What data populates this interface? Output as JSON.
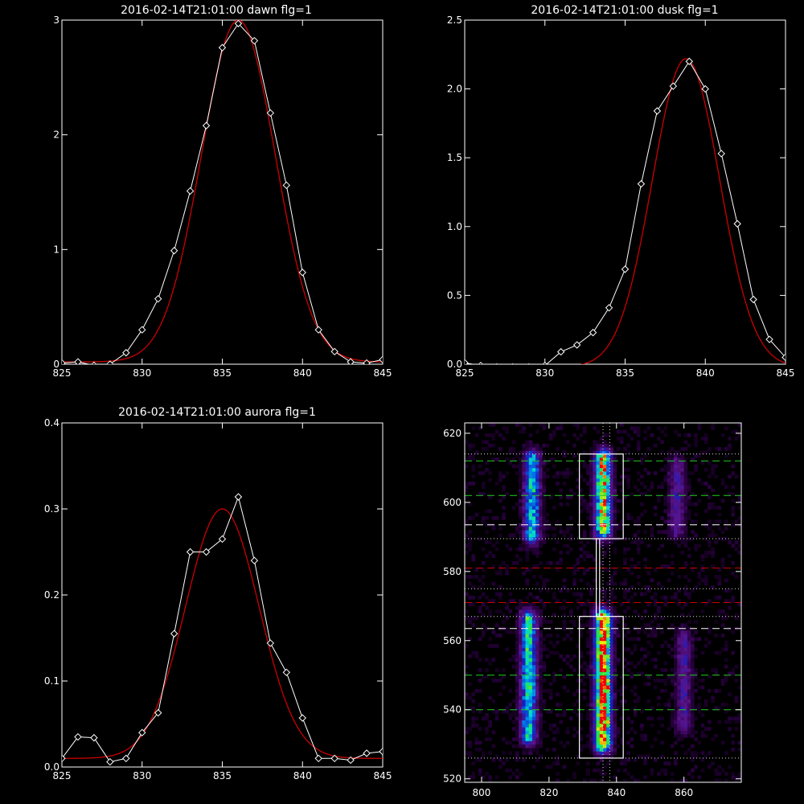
{
  "colors": {
    "background": "#000000",
    "axes": "#ffffff",
    "data": "#ffffff",
    "fit": "#cc0000",
    "green_dash": "#22cc22",
    "red_dash": "#cc0000",
    "white_dash": "#ffffff",
    "dotted": "#dddddd"
  },
  "chart_data": [
    {
      "type": "line",
      "title": "2016-02-14T21:01:00 dawn flg=1",
      "xlabel": "",
      "ylabel": "",
      "xlim": [
        825,
        845
      ],
      "ylim": [
        0,
        3
      ],
      "x_ticks": [
        825,
        830,
        835,
        840,
        845
      ],
      "x_tick_labels": [
        "825",
        "830",
        "835",
        "840",
        "845"
      ],
      "y_ticks": [
        0,
        1,
        2,
        3
      ],
      "y_tick_labels": [
        "0",
        "1",
        "2",
        "3"
      ],
      "series": [
        {
          "role": "data",
          "marker": "diamond",
          "color": "#ffffff",
          "x": [
            825,
            826,
            827,
            828,
            829,
            830,
            831,
            832,
            833,
            834,
            835,
            836,
            837,
            838,
            839,
            840,
            841,
            842,
            843,
            844,
            845
          ],
          "y": [
            0.01,
            0.02,
            -0.01,
            0.0,
            0.1,
            0.3,
            0.57,
            0.99,
            1.51,
            2.08,
            2.76,
            2.97,
            2.82,
            2.19,
            1.56,
            0.8,
            0.3,
            0.11,
            0.02,
            0.01,
            0.04
          ]
        },
        {
          "role": "fit",
          "curve": "gaussian",
          "color": "#cc0000",
          "amplitude": 2.98,
          "center": 836.0,
          "sigma": 2.3,
          "offset": 0.02
        }
      ]
    },
    {
      "type": "line",
      "title": "2016-02-14T21:01:00 dusk flg=1",
      "xlabel": "",
      "ylabel": "",
      "xlim": [
        825,
        845
      ],
      "ylim": [
        0,
        2.5
      ],
      "x_ticks": [
        825,
        830,
        835,
        840,
        845
      ],
      "x_tick_labels": [
        "825",
        "830",
        "835",
        "840",
        "845"
      ],
      "y_ticks": [
        0,
        0.5,
        1.0,
        1.5,
        2.0,
        2.5
      ],
      "y_tick_labels": [
        "0.0",
        "0.5",
        "1.0",
        "1.5",
        "2.0",
        "2.5"
      ],
      "series": [
        {
          "role": "data",
          "marker": "diamond",
          "color": "#ffffff",
          "x": [
            825,
            826,
            827,
            828,
            829,
            830,
            831,
            832,
            833,
            834,
            835,
            836,
            837,
            838,
            839,
            840,
            841,
            842,
            843,
            844,
            845
          ],
          "y": [
            0.01,
            -0.01,
            -0.02,
            -0.02,
            -0.02,
            -0.01,
            0.09,
            0.14,
            0.23,
            0.41,
            0.69,
            1.31,
            1.84,
            2.02,
            2.2,
            2.0,
            1.53,
            1.02,
            0.47,
            0.18,
            0.05
          ]
        },
        {
          "role": "fit",
          "curve": "gaussian",
          "color": "#cc0000",
          "amplitude": 2.24,
          "center": 838.8,
          "sigma": 2.1,
          "offset": -0.02
        }
      ]
    },
    {
      "type": "line",
      "title": "2016-02-14T21:01:00 aurora flg=1",
      "xlabel": "",
      "ylabel": "",
      "xlim": [
        825,
        845
      ],
      "ylim": [
        0,
        0.4
      ],
      "x_ticks": [
        825,
        830,
        835,
        840,
        845
      ],
      "x_tick_labels": [
        "825",
        "830",
        "835",
        "840",
        "845"
      ],
      "y_ticks": [
        0,
        0.1,
        0.2,
        0.3,
        0.4
      ],
      "y_tick_labels": [
        "0.0",
        "0.1",
        "0.2",
        "0.3",
        "0.4"
      ],
      "series": [
        {
          "role": "data",
          "marker": "diamond",
          "color": "#ffffff",
          "x": [
            825,
            826,
            827,
            828,
            829,
            830,
            831,
            832,
            833,
            834,
            835,
            836,
            837,
            838,
            839,
            840,
            841,
            842,
            843,
            844,
            845
          ],
          "y": [
            0.01,
            0.035,
            0.034,
            0.006,
            0.01,
            0.04,
            0.063,
            0.155,
            0.25,
            0.25,
            0.265,
            0.314,
            0.24,
            0.144,
            0.11,
            0.057,
            0.01,
            0.01,
            0.008,
            0.016,
            0.018
          ]
        },
        {
          "role": "fit",
          "curve": "gaussian",
          "color": "#cc0000",
          "amplitude": 0.29,
          "center": 835.0,
          "sigma": 2.3,
          "offset": 0.01
        }
      ]
    },
    {
      "type": "heatmap",
      "title": "",
      "xlabel": "",
      "ylabel": "",
      "xlim": [
        795,
        877
      ],
      "ylim": [
        519,
        623
      ],
      "x_ticks": [
        800,
        820,
        840,
        860
      ],
      "x_tick_labels": [
        "800",
        "820",
        "840",
        "860"
      ],
      "y_ticks": [
        520,
        540,
        560,
        580,
        600,
        620
      ],
      "y_tick_labels": [
        "520",
        "540",
        "560",
        "580",
        "600",
        "620"
      ],
      "colormap": "rainbow (purple-blue-cyan-green-yellow-red)",
      "emission_columns": [
        {
          "x": 815,
          "y_range": [
            590,
            612
          ],
          "peak": 0.55
        },
        {
          "x": 836,
          "y_range": [
            592,
            612
          ],
          "peak": 0.85
        },
        {
          "x": 858,
          "y_range": [
            592,
            610
          ],
          "peak": 0.25
        },
        {
          "x": 814,
          "y_range": [
            532,
            566
          ],
          "peak": 0.6
        },
        {
          "x": 836,
          "y_range": [
            530,
            566
          ],
          "peak": 1.0
        },
        {
          "x": 860,
          "y_range": [
            535,
            560
          ],
          "peak": 0.25
        }
      ],
      "hot_pixels": [
        {
          "x": 836,
          "y": 542
        },
        {
          "x": 837,
          "y": 546
        }
      ],
      "vertical_dotted_lines": [
        836,
        838
      ],
      "horizontal_lines": [
        {
          "y": 612,
          "style": "dashed",
          "color": "green"
        },
        {
          "y": 602,
          "style": "dashed",
          "color": "green"
        },
        {
          "y": 593.5,
          "style": "dashed",
          "color": "white"
        },
        {
          "y": 589.5,
          "style": "dotted",
          "color": "white"
        },
        {
          "y": 614,
          "style": "dotted",
          "color": "white"
        },
        {
          "y": 581,
          "style": "dashed",
          "color": "red"
        },
        {
          "y": 575,
          "style": "dotted",
          "color": "white"
        },
        {
          "y": 571,
          "style": "dashed",
          "color": "red"
        },
        {
          "y": 567,
          "style": "dotted",
          "color": "white"
        },
        {
          "y": 563.5,
          "style": "dashed",
          "color": "white"
        },
        {
          "y": 550,
          "style": "dashed",
          "color": "green"
        },
        {
          "y": 540,
          "style": "dashed",
          "color": "green"
        },
        {
          "y": 526,
          "style": "dotted",
          "color": "white"
        }
      ],
      "boxes": [
        {
          "x": [
            829,
            842
          ],
          "y": [
            589.5,
            614
          ]
        },
        {
          "x": [
            834,
            835
          ],
          "y": [
            567,
            589.5
          ]
        },
        {
          "x": [
            829,
            842
          ],
          "y": [
            526,
            567
          ]
        }
      ]
    }
  ]
}
